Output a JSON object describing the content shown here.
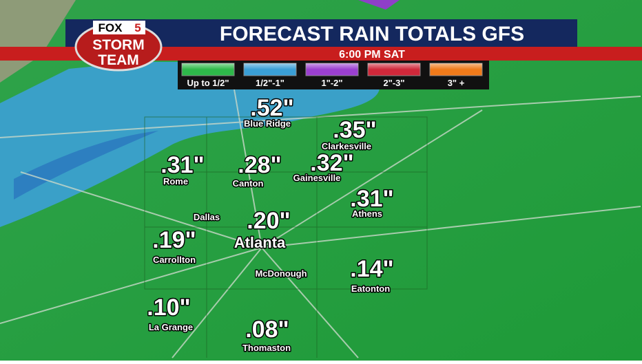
{
  "logo": {
    "network": "FOX",
    "channel": "5",
    "line1": "STORM",
    "line2": "TEAM"
  },
  "header": {
    "title": "FORECAST RAIN TOTALS GFS",
    "time": "6:00 PM SAT"
  },
  "legend": [
    "Up to 1/2\"",
    "1/2\"-1\"",
    "1\"-2\"",
    "2\"-3\"",
    "3\" +"
  ],
  "cities": [
    {
      "value": ".52\"",
      "name": "Blue Ridge"
    },
    {
      "value": ".35\"",
      "name": "Clarkesville"
    },
    {
      "value": ".31\"",
      "name": "Rome"
    },
    {
      "value": ".28\"",
      "name": "Canton"
    },
    {
      "value": ".32\"",
      "name": "Gainesville"
    },
    {
      "value": ".31\"",
      "name": "Athens"
    },
    {
      "name": "Dallas"
    },
    {
      "value": ".20\"",
      "name": "Atlanta"
    },
    {
      "value": ".19\"",
      "name": "Carrollton"
    },
    {
      "name": "McDonough"
    },
    {
      "value": ".14\"",
      "name": "Eatonton"
    },
    {
      "value": ".10\"",
      "name": "La Grange"
    },
    {
      "value": ".08\"",
      "name": "Thomaston"
    }
  ]
}
